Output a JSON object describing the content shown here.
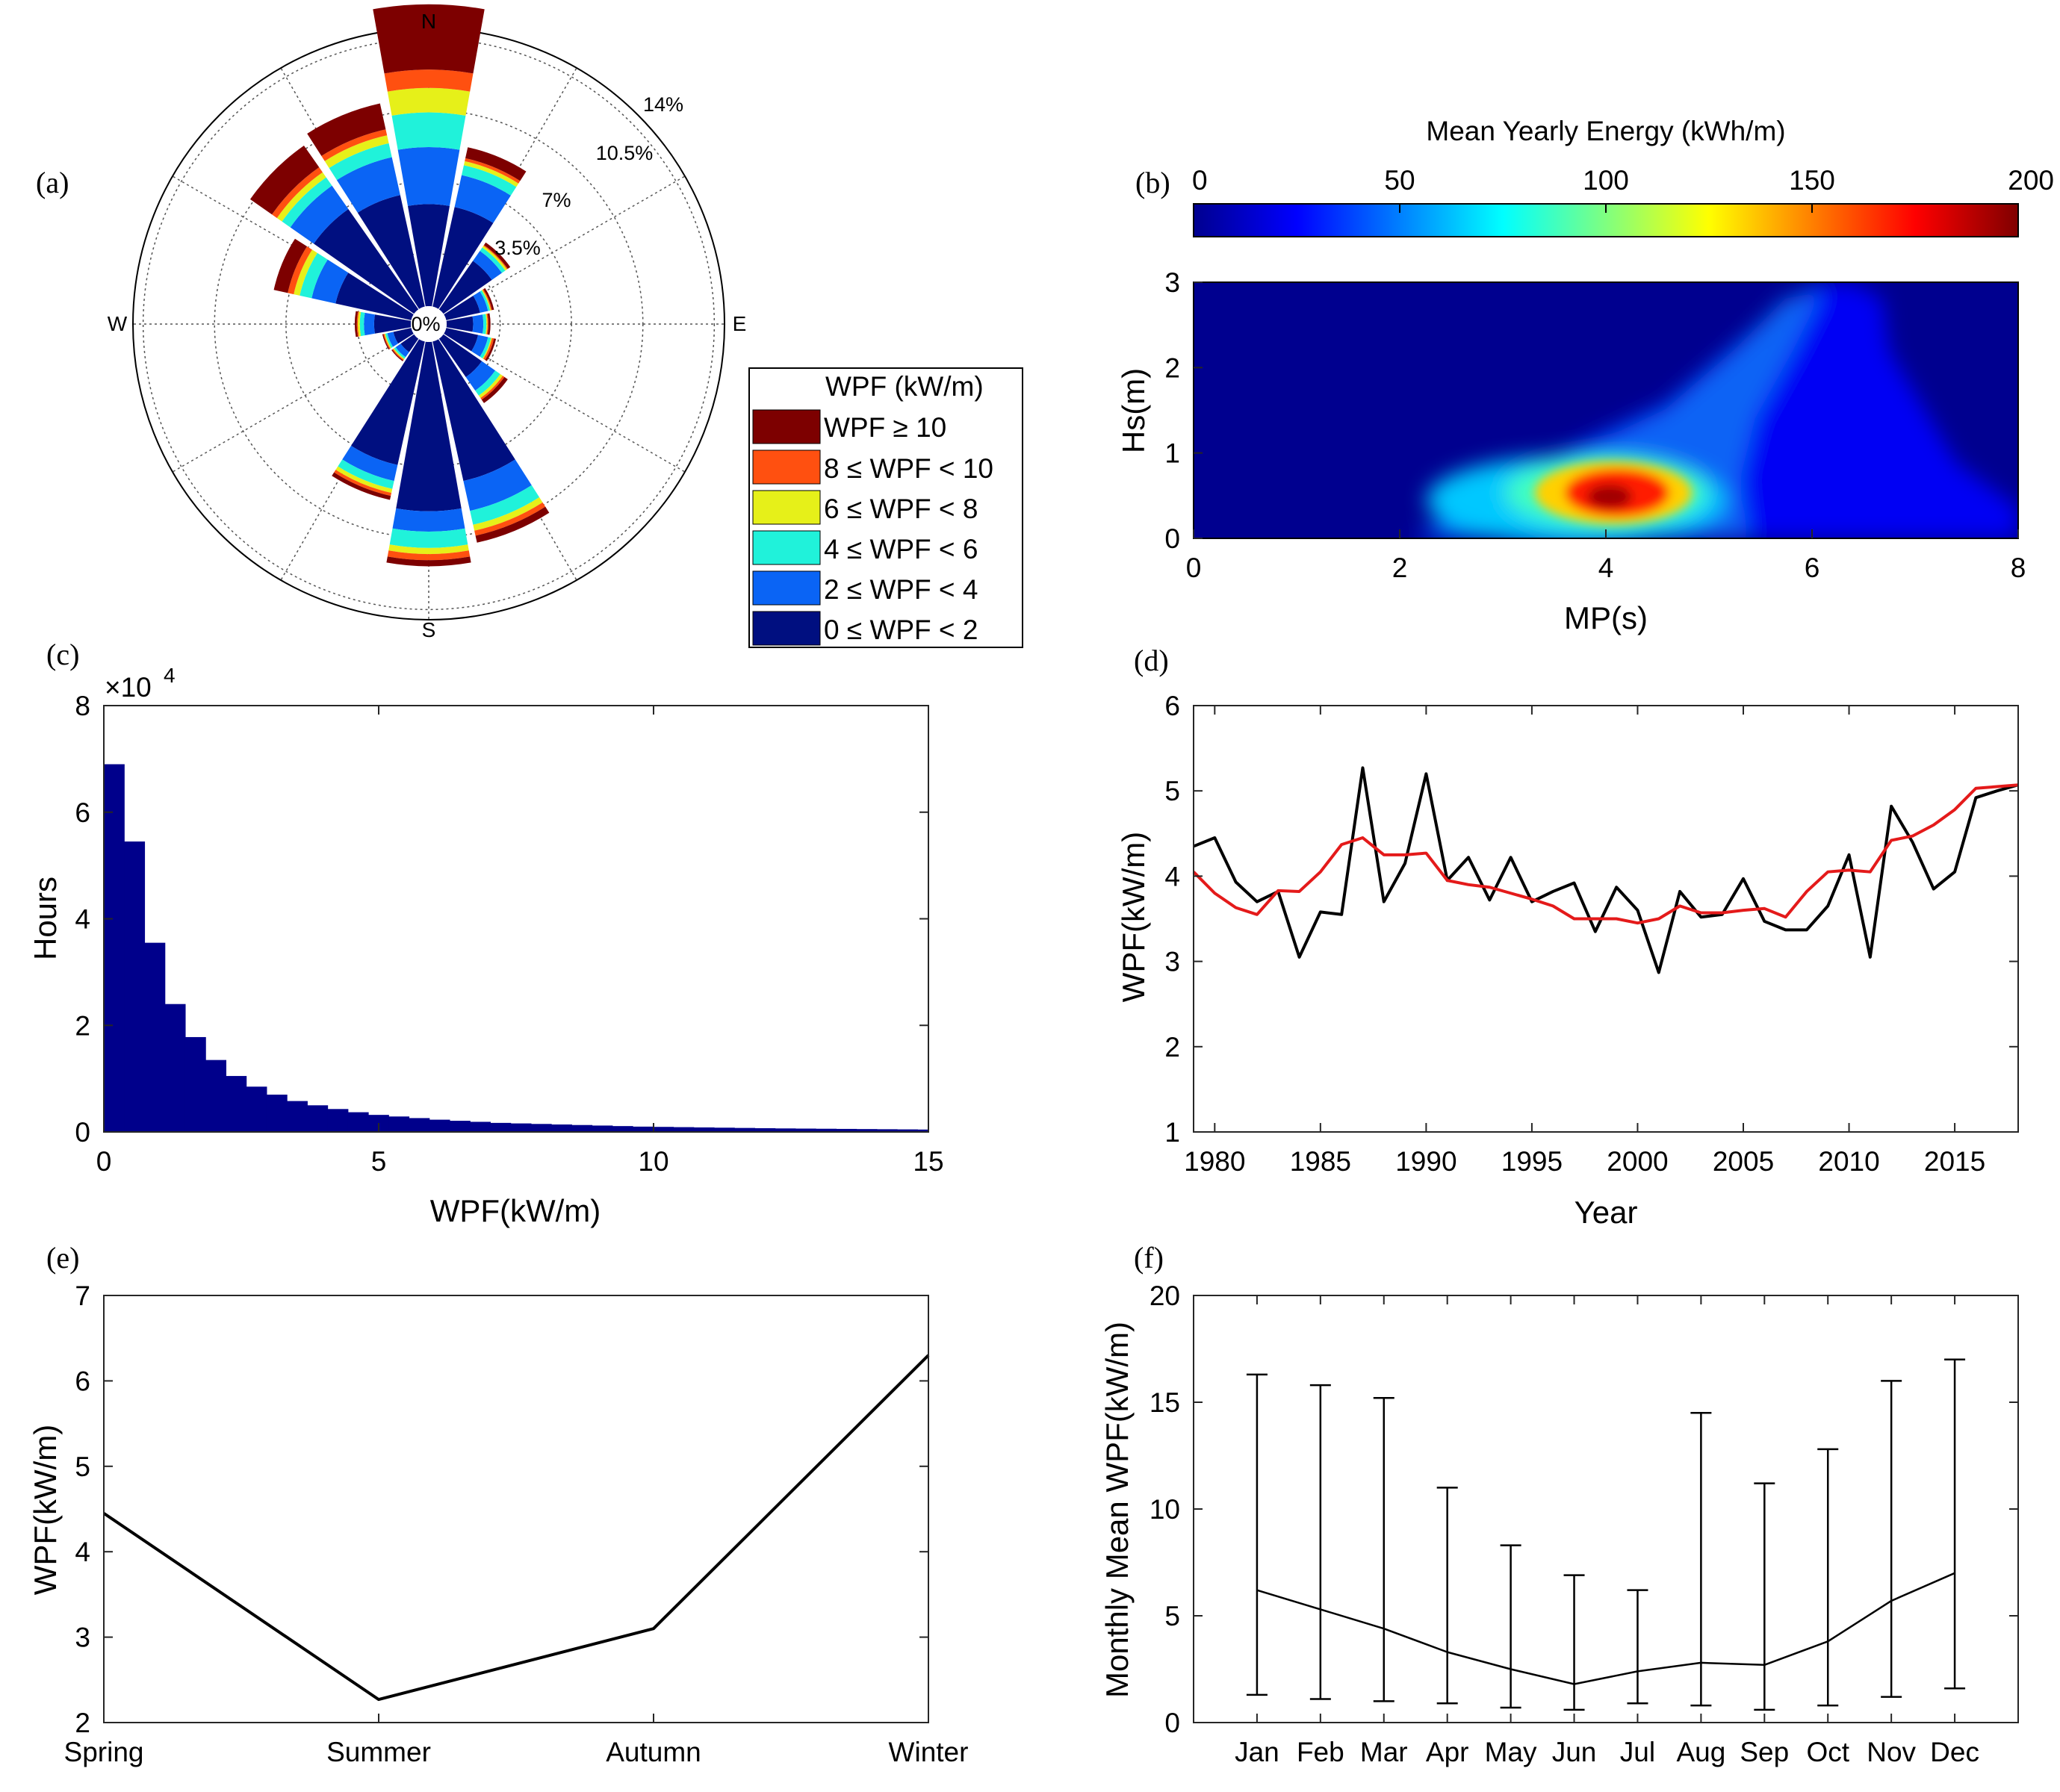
{
  "panel_labels": [
    "(a)",
    "(b)",
    "(c)",
    "(d)",
    "(e)",
    "(f)"
  ],
  "chart_data": [
    {
      "panel": "(a)",
      "type": "wind-rose",
      "directions": [
        "N",
        "E",
        "S",
        "W"
      ],
      "ring_labels": [
        "0%",
        "3.5%",
        "7%",
        "10.5%",
        "14%"
      ],
      "ring_values": [
        0,
        3.5,
        7,
        10.5,
        14
      ],
      "sector_angles_deg": [
        0,
        22.5,
        45,
        67.5,
        90,
        112.5,
        135,
        157.5,
        180,
        202.5,
        225,
        247.5,
        270,
        292.5,
        315,
        337.5
      ],
      "legend_title": "WPF (kW/m)",
      "bins": [
        {
          "label": "0 ≤ WPF < 2",
          "color": "#000F80"
        },
        {
          "label": "2 ≤ WPF < 4",
          "color": "#0A64F5"
        },
        {
          "label": "4 ≤ WPF < 6",
          "color": "#20F2DA"
        },
        {
          "label": "6 ≤ WPF < 8",
          "color": "#E6F019"
        },
        {
          "label": "8 ≤ WPF < 10",
          "color": "#FF5010"
        },
        {
          "label": "WPF ≥ 10",
          "color": "#7D0000"
        }
      ],
      "cumulative_percent": [
        [
          5.0,
          7.8,
          9.5,
          10.7,
          11.6,
          14.8
        ],
        [
          5.0,
          6.6,
          7.1,
          7.3,
          7.45,
          8.0
        ],
        [
          2.9,
          3.5,
          3.7,
          3.8,
          3.85,
          4.0
        ],
        [
          1.7,
          2.1,
          2.2,
          2.25,
          2.3,
          2.4
        ],
        [
          1.3,
          1.8,
          1.95,
          2.0,
          2.05,
          2.15
        ],
        [
          1.6,
          2.1,
          2.25,
          2.3,
          2.4,
          2.5
        ],
        [
          2.3,
          3.1,
          3.4,
          3.55,
          3.65,
          3.85
        ],
        [
          7.0,
          8.5,
          9.2,
          9.5,
          9.75,
          10.1
        ],
        [
          8.3,
          9.3,
          10.1,
          10.4,
          10.7,
          11.0
        ],
        [
          6.2,
          7.0,
          7.4,
          7.6,
          7.75,
          7.95
        ],
        [
          0.8,
          1.1,
          1.2,
          1.25,
          1.3,
          1.35
        ],
        [
          0.9,
          1.2,
          1.3,
          1.35,
          1.4,
          1.45
        ],
        [
          1.8,
          2.3,
          2.5,
          2.6,
          2.65,
          2.75
        ],
        [
          3.8,
          5.0,
          5.6,
          5.9,
          6.2,
          6.9
        ],
        [
          6.0,
          7.4,
          7.9,
          8.2,
          8.5,
          9.8
        ],
        [
          5.6,
          7.5,
          8.2,
          8.6,
          8.9,
          10.2
        ]
      ]
    },
    {
      "panel": "(b)",
      "type": "heatmap",
      "colorbar_title": "Mean Yearly Energy (kWh/m)",
      "colorbar_ticks": [
        0,
        50,
        100,
        150,
        200
      ],
      "xlabel": "MP(s)",
      "ylabel": "Hs(m)",
      "xlim": [
        0,
        8
      ],
      "ylim": [
        0,
        3
      ],
      "xticks": [
        0,
        2,
        4,
        6,
        8
      ],
      "yticks": [
        0,
        1,
        2,
        3
      ],
      "peak": {
        "x": 3.7,
        "y": 0.5,
        "value": 190
      }
    },
    {
      "panel": "(c)",
      "type": "bar",
      "xlabel": "WPF(kW/m)",
      "ylabel": "Hours",
      "multiplier_label": "×10",
      "multiplier_exponent": "4",
      "xlim": [
        0,
        15
      ],
      "ylim": [
        0,
        8
      ],
      "xticks": [
        0,
        5,
        10,
        15
      ],
      "yticks": [
        0,
        2,
        4,
        6,
        8
      ],
      "bin_width": 0.37,
      "values": [
        6.9,
        5.45,
        3.55,
        2.4,
        1.78,
        1.35,
        1.05,
        0.85,
        0.7,
        0.58,
        0.5,
        0.43,
        0.37,
        0.32,
        0.29,
        0.26,
        0.23,
        0.21,
        0.19,
        0.17,
        0.16,
        0.15,
        0.14,
        0.13,
        0.12,
        0.11,
        0.1,
        0.095,
        0.09,
        0.085,
        0.08,
        0.075,
        0.07,
        0.066,
        0.063,
        0.06,
        0.057,
        0.054,
        0.051,
        0.048,
        0.045
      ]
    },
    {
      "panel": "(d)",
      "type": "line",
      "xlabel": "Year",
      "ylabel": "WPF(kW/m)",
      "xlim": [
        1979,
        2018
      ],
      "ylim": [
        1,
        6
      ],
      "xticks": [
        1980,
        1985,
        1990,
        1995,
        2000,
        2005,
        2010,
        2015
      ],
      "yticks": [
        1,
        2,
        3,
        4,
        5,
        6
      ],
      "x": [
        1979,
        1980,
        1981,
        1982,
        1983,
        1984,
        1985,
        1986,
        1987,
        1988,
        1989,
        1990,
        1991,
        1992,
        1993,
        1994,
        1995,
        1996,
        1997,
        1998,
        1999,
        2000,
        2001,
        2002,
        2003,
        2004,
        2005,
        2006,
        2007,
        2008,
        2009,
        2010,
        2011,
        2012,
        2013,
        2014,
        2015,
        2016,
        2017,
        2018
      ],
      "series": [
        {
          "color": "#000000",
          "values": [
            4.35,
            4.45,
            3.93,
            3.7,
            3.82,
            3.05,
            3.58,
            3.55,
            5.27,
            3.7,
            4.15,
            5.2,
            3.95,
            4.22,
            3.72,
            4.22,
            3.7,
            3.82,
            3.92,
            3.35,
            3.87,
            3.6,
            2.87,
            3.82,
            3.52,
            3.55,
            3.97,
            3.47,
            3.37,
            3.37,
            3.65,
            4.25,
            3.05,
            4.82,
            4.4,
            3.85,
            4.05,
            4.92,
            5.0,
            5.07
          ]
        },
        {
          "color": "#E41A1A",
          "values": [
            4.05,
            3.8,
            3.63,
            3.55,
            3.83,
            3.82,
            4.05,
            4.37,
            4.45,
            4.25,
            4.25,
            4.27,
            3.95,
            3.9,
            3.87,
            3.8,
            3.73,
            3.65,
            3.5,
            3.5,
            3.5,
            3.45,
            3.5,
            3.65,
            3.57,
            3.57,
            3.6,
            3.62,
            3.52,
            3.82,
            4.05,
            4.07,
            4.05,
            4.42,
            4.47,
            4.6,
            4.78,
            5.03,
            5.05,
            5.07
          ]
        }
      ]
    },
    {
      "panel": "(e)",
      "type": "line",
      "xlabel": "",
      "ylabel": "WPF(kW/m)",
      "categories": [
        "Spring",
        "Summer",
        "Autumn",
        "Winter"
      ],
      "values": [
        4.45,
        2.27,
        3.1,
        6.3
      ],
      "ylim": [
        2,
        7
      ],
      "yticks": [
        2,
        3,
        4,
        5,
        6,
        7
      ]
    },
    {
      "panel": "(f)",
      "type": "errorbar",
      "xlabel": "",
      "ylabel": "Monthly Mean WPF(kW/m)",
      "categories": [
        "Jan",
        "Feb",
        "Mar",
        "Apr",
        "May",
        "Jun",
        "Jul",
        "Aug",
        "Sep",
        "Oct",
        "Nov",
        "Dec"
      ],
      "values": [
        6.2,
        5.3,
        4.4,
        3.3,
        2.5,
        1.8,
        2.4,
        2.8,
        2.7,
        3.8,
        5.7,
        7.0
      ],
      "lower": [
        1.3,
        1.1,
        1.0,
        0.9,
        0.7,
        0.6,
        0.9,
        0.8,
        0.6,
        0.8,
        1.2,
        1.6
      ],
      "upper": [
        16.3,
        15.8,
        15.2,
        11.0,
        8.3,
        6.9,
        6.2,
        14.5,
        11.2,
        12.8,
        16.0,
        17.0
      ],
      "ylim": [
        0,
        20
      ],
      "yticks": [
        0,
        5,
        10,
        15,
        20
      ]
    }
  ]
}
